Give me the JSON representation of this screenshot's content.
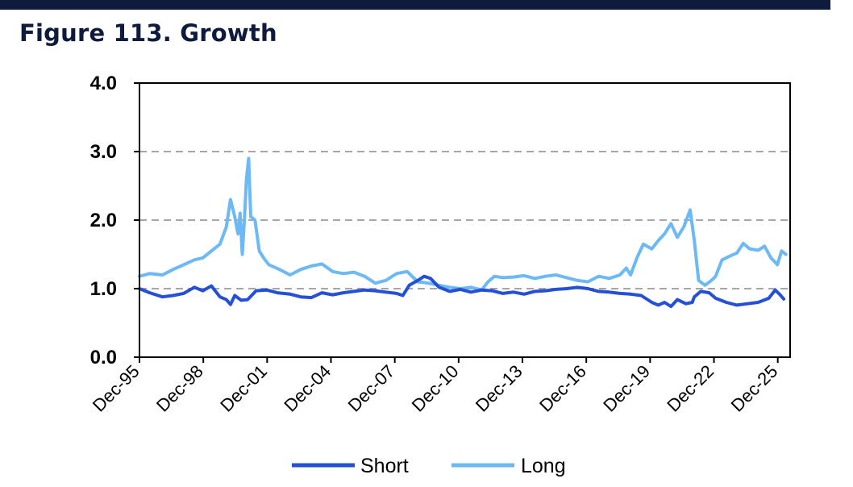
{
  "header": {
    "title": "Figure 113. Growth"
  },
  "colors": {
    "bar": "#0f1b3d",
    "title": "#0f1b3d",
    "short": "#2450d8",
    "long": "#6cb9f5",
    "grid": "#a6a6a6"
  },
  "chart_data": {
    "type": "line",
    "title": "Figure 113. Growth",
    "xlabel": "",
    "ylabel": "",
    "ylim": [
      0,
      4
    ],
    "yticks": [
      "0.0",
      "1.0",
      "2.0",
      "3.0",
      "4.0"
    ],
    "ytick_values": [
      0,
      1,
      2,
      3,
      4
    ],
    "xlim": [
      1995.92,
      2026.5
    ],
    "xticks": [
      "Dec-95",
      "Dec-98",
      "Dec-01",
      "Dec-04",
      "Dec-07",
      "Dec-10",
      "Dec-13",
      "Dec-16",
      "Dec-19",
      "Dec-22",
      "Dec-25"
    ],
    "xtick_values": [
      1995.92,
      1998.92,
      2001.92,
      2004.92,
      2007.92,
      2010.92,
      2013.92,
      2016.92,
      2019.92,
      2022.92,
      2025.92
    ],
    "grid": "horizontal dashed",
    "legend": "bottom",
    "series": [
      {
        "name": "Short",
        "color": "#2450d8",
        "points": [
          [
            1995.92,
            1.0
          ],
          [
            1996.4,
            0.94
          ],
          [
            1997.0,
            0.88
          ],
          [
            1997.5,
            0.9
          ],
          [
            1998.0,
            0.93
          ],
          [
            1998.5,
            1.02
          ],
          [
            1998.9,
            0.97
          ],
          [
            1999.3,
            1.04
          ],
          [
            1999.7,
            0.88
          ],
          [
            2000.0,
            0.84
          ],
          [
            2000.2,
            0.77
          ],
          [
            2000.4,
            0.9
          ],
          [
            2000.7,
            0.83
          ],
          [
            2001.0,
            0.84
          ],
          [
            2001.4,
            0.97
          ],
          [
            2001.9,
            0.98
          ],
          [
            2002.4,
            0.94
          ],
          [
            2003.0,
            0.92
          ],
          [
            2003.5,
            0.88
          ],
          [
            2004.0,
            0.87
          ],
          [
            2004.5,
            0.94
          ],
          [
            2005.0,
            0.91
          ],
          [
            2005.5,
            0.94
          ],
          [
            2006.0,
            0.96
          ],
          [
            2006.5,
            0.98
          ],
          [
            2007.0,
            0.97
          ],
          [
            2007.5,
            0.95
          ],
          [
            2008.0,
            0.93
          ],
          [
            2008.3,
            0.9
          ],
          [
            2008.6,
            1.05
          ],
          [
            2009.0,
            1.12
          ],
          [
            2009.3,
            1.18
          ],
          [
            2009.6,
            1.15
          ],
          [
            2010.0,
            1.02
          ],
          [
            2010.5,
            0.96
          ],
          [
            2011.0,
            0.99
          ],
          [
            2011.5,
            0.95
          ],
          [
            2012.0,
            0.98
          ],
          [
            2012.5,
            0.97
          ],
          [
            2013.0,
            0.93
          ],
          [
            2013.5,
            0.95
          ],
          [
            2014.0,
            0.92
          ],
          [
            2014.5,
            0.96
          ],
          [
            2015.0,
            0.97
          ],
          [
            2015.5,
            0.99
          ],
          [
            2016.0,
            1.0
          ],
          [
            2016.5,
            1.02
          ],
          [
            2017.0,
            1.0
          ],
          [
            2017.5,
            0.96
          ],
          [
            2018.0,
            0.95
          ],
          [
            2018.5,
            0.93
          ],
          [
            2019.0,
            0.92
          ],
          [
            2019.5,
            0.9
          ],
          [
            2020.0,
            0.8
          ],
          [
            2020.3,
            0.76
          ],
          [
            2020.6,
            0.8
          ],
          [
            2020.9,
            0.74
          ],
          [
            2021.2,
            0.84
          ],
          [
            2021.6,
            0.78
          ],
          [
            2021.9,
            0.8
          ],
          [
            2022.0,
            0.88
          ],
          [
            2022.3,
            0.96
          ],
          [
            2022.7,
            0.94
          ],
          [
            2023.0,
            0.86
          ],
          [
            2023.5,
            0.8
          ],
          [
            2024.0,
            0.76
          ],
          [
            2024.5,
            0.78
          ],
          [
            2025.0,
            0.8
          ],
          [
            2025.5,
            0.86
          ],
          [
            2025.8,
            0.98
          ],
          [
            2026.0,
            0.92
          ],
          [
            2026.2,
            0.85
          ]
        ]
      },
      {
        "name": "Long",
        "color": "#6cb9f5",
        "points": [
          [
            1995.92,
            1.18
          ],
          [
            1996.4,
            1.22
          ],
          [
            1997.0,
            1.2
          ],
          [
            1997.5,
            1.28
          ],
          [
            1998.0,
            1.35
          ],
          [
            1998.5,
            1.42
          ],
          [
            1998.9,
            1.45
          ],
          [
            1999.3,
            1.55
          ],
          [
            1999.7,
            1.65
          ],
          [
            2000.0,
            1.9
          ],
          [
            2000.2,
            2.3
          ],
          [
            2000.4,
            2.05
          ],
          [
            2000.55,
            1.8
          ],
          [
            2000.65,
            2.1
          ],
          [
            2000.75,
            1.5
          ],
          [
            2000.85,
            2.0
          ],
          [
            2000.95,
            2.6
          ],
          [
            2001.05,
            2.9
          ],
          [
            2001.15,
            2.05
          ],
          [
            2001.35,
            2.0
          ],
          [
            2001.55,
            1.55
          ],
          [
            2001.75,
            1.45
          ],
          [
            2002.0,
            1.35
          ],
          [
            2002.5,
            1.28
          ],
          [
            2003.0,
            1.2
          ],
          [
            2003.5,
            1.28
          ],
          [
            2004.0,
            1.33
          ],
          [
            2004.5,
            1.36
          ],
          [
            2005.0,
            1.25
          ],
          [
            2005.5,
            1.22
          ],
          [
            2006.0,
            1.24
          ],
          [
            2006.5,
            1.18
          ],
          [
            2007.0,
            1.08
          ],
          [
            2007.5,
            1.12
          ],
          [
            2008.0,
            1.22
          ],
          [
            2008.5,
            1.25
          ],
          [
            2009.0,
            1.1
          ],
          [
            2009.5,
            1.08
          ],
          [
            2010.0,
            1.05
          ],
          [
            2010.5,
            1.02
          ],
          [
            2011.0,
            1.0
          ],
          [
            2011.5,
            1.02
          ],
          [
            2012.0,
            0.98
          ],
          [
            2012.3,
            1.1
          ],
          [
            2012.6,
            1.18
          ],
          [
            2013.0,
            1.16
          ],
          [
            2013.5,
            1.17
          ],
          [
            2014.0,
            1.19
          ],
          [
            2014.5,
            1.15
          ],
          [
            2015.0,
            1.18
          ],
          [
            2015.5,
            1.2
          ],
          [
            2016.0,
            1.16
          ],
          [
            2016.5,
            1.12
          ],
          [
            2017.0,
            1.1
          ],
          [
            2017.5,
            1.18
          ],
          [
            2018.0,
            1.15
          ],
          [
            2018.5,
            1.2
          ],
          [
            2018.8,
            1.3
          ],
          [
            2019.0,
            1.2
          ],
          [
            2019.3,
            1.45
          ],
          [
            2019.6,
            1.65
          ],
          [
            2020.0,
            1.58
          ],
          [
            2020.3,
            1.7
          ],
          [
            2020.6,
            1.8
          ],
          [
            2020.9,
            1.95
          ],
          [
            2021.2,
            1.75
          ],
          [
            2021.5,
            1.9
          ],
          [
            2021.8,
            2.15
          ],
          [
            2022.0,
            1.7
          ],
          [
            2022.2,
            1.12
          ],
          [
            2022.5,
            1.05
          ],
          [
            2022.8,
            1.12
          ],
          [
            2023.0,
            1.18
          ],
          [
            2023.3,
            1.42
          ],
          [
            2023.7,
            1.48
          ],
          [
            2024.0,
            1.52
          ],
          [
            2024.3,
            1.66
          ],
          [
            2024.6,
            1.58
          ],
          [
            2025.0,
            1.56
          ],
          [
            2025.3,
            1.62
          ],
          [
            2025.6,
            1.45
          ],
          [
            2025.9,
            1.35
          ],
          [
            2026.1,
            1.55
          ],
          [
            2026.3,
            1.5
          ]
        ]
      }
    ]
  }
}
